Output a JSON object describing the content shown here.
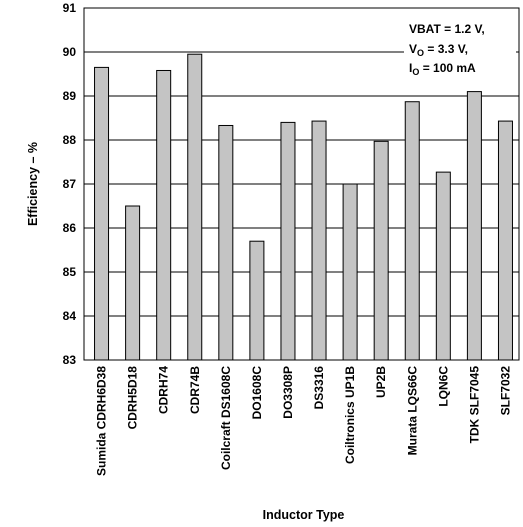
{
  "chart_data": {
    "type": "bar",
    "xlabel": "Inductor Type",
    "ylabel": "Efficiency – %",
    "ylim": [
      83,
      91
    ],
    "yticks": [
      "83",
      "84",
      "85",
      "86",
      "87",
      "88",
      "89",
      "90",
      "91"
    ],
    "grid": true,
    "categories": [
      "Sumida CDRH6D38",
      "CDRH5D18",
      "CDRH74",
      "CDR74B",
      "Coilcraft DS1608C",
      "DO1608C",
      "DO3308P",
      "DS3316",
      "Coiltronics UP1B",
      "UP2B",
      "Murata LQS66C",
      "LQN6C",
      "TDK SLF7045",
      "SLF7032"
    ],
    "values": [
      89.65,
      86.5,
      89.58,
      89.95,
      88.33,
      85.7,
      88.4,
      88.43,
      87.0,
      87.97,
      88.87,
      87.27,
      89.1,
      88.43
    ],
    "annotation": {
      "line1": "VBAT = 1.2 V,",
      "line2_main": "V",
      "line2_sub": "O",
      "line2_rest": " = 3.3 V,",
      "line3_main": "I",
      "line3_sub": "O",
      "line3_rest": " = 100 mA"
    },
    "colors": {
      "bar": "#c4c4c4",
      "outline": "#000000"
    }
  }
}
